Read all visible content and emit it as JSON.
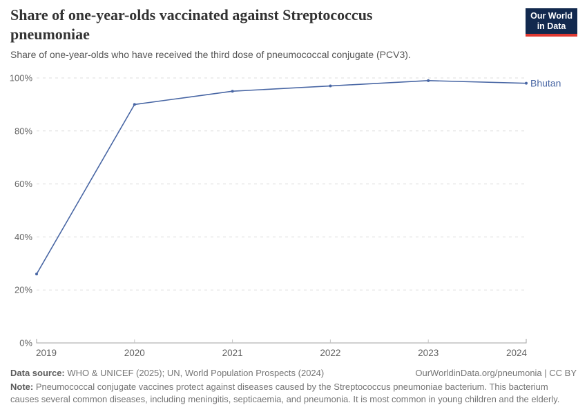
{
  "header": {
    "title": "Share of one-year-olds vaccinated against Streptococcus pneumoniae",
    "subtitle": "Share of one-year-olds who have received the third dose of pneumococcal conjugate (PCV3).",
    "logo": {
      "line1": "Our World",
      "line2": "in Data"
    }
  },
  "chart_data": {
    "type": "line",
    "title": "Share of one-year-olds vaccinated against Streptococcus pneumoniae",
    "subtitle": "Share of one-year-olds who have received the third dose of pneumococcal conjugate (PCV3).",
    "x": [
      2019,
      2020,
      2021,
      2022,
      2023,
      2024
    ],
    "series": [
      {
        "name": "Bhutan",
        "color": "#4866a4",
        "values": [
          26,
          90,
          95,
          97,
          99,
          98
        ]
      }
    ],
    "ylim": [
      0,
      100
    ],
    "yticks": [
      0,
      20,
      40,
      60,
      80,
      100
    ],
    "ytick_suffix": "%",
    "xlabel": "",
    "ylabel": "",
    "grid": "horizontal-dashed",
    "legend": "entity-label-at-line-end"
  },
  "colors": {
    "series": "#4866a4",
    "grid": "#dcdcdc",
    "axis": "#a0a0a0",
    "tick": "#c4c4c4",
    "y_label": "#666666",
    "x_label": "#5f5f5f",
    "title": "#333333",
    "subtitle": "#555555",
    "footer": "#757575",
    "logo_bg": "#12294e",
    "logo_accent": "#e03931"
  },
  "footer": {
    "data_source_label": "Data source:",
    "data_source": "WHO & UNICEF (2025); UN, World Population Prospects (2024)",
    "rights": "OurWorldinData.org/pneumonia | CC BY",
    "note_label": "Note:",
    "note": "Pneumococcal conjugate vaccines protect against diseases caused by the Streptococcus pneumoniae bacterium. This bacterium causes several common diseases, including meningitis, septicaemia, and pneumonia. It is most common in young children and the elderly."
  }
}
